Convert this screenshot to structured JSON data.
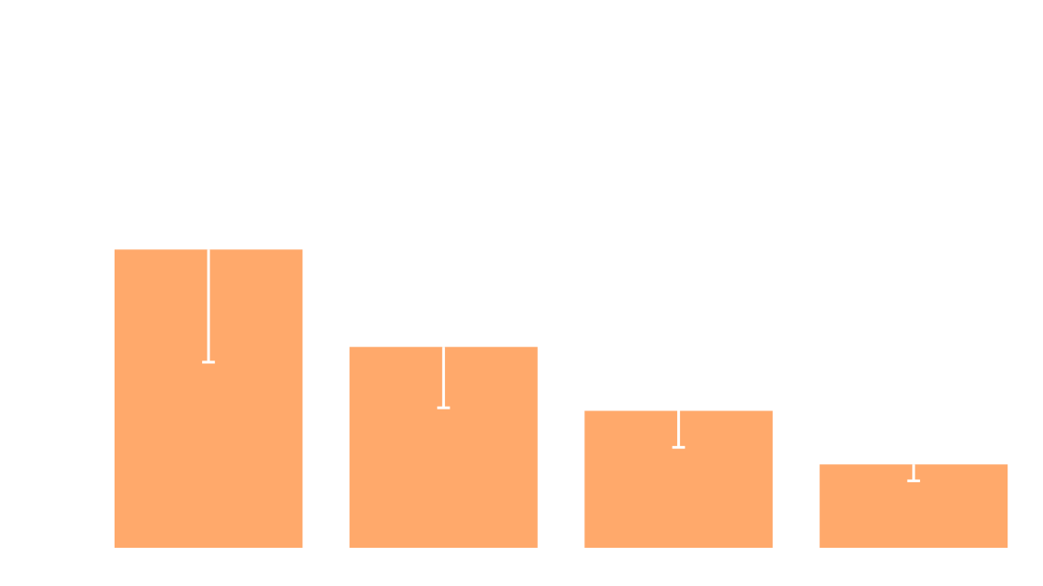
{
  "chart_data": {
    "type": "bar",
    "categories": [
      "",
      "",
      "",
      ""
    ],
    "values": [
      4.9,
      3.3,
      2.25,
      1.37
    ],
    "error_lower": [
      1.85,
      1.0,
      0.6,
      0.27
    ],
    "ylim": [
      0,
      9.0
    ],
    "grid": false,
    "legend": "none",
    "title": "",
    "xlabel": "",
    "ylabel": "",
    "colors": {
      "bar": "#FFA96B",
      "error_bar": "#FFFFFF",
      "background": "#FFFFFF"
    }
  }
}
